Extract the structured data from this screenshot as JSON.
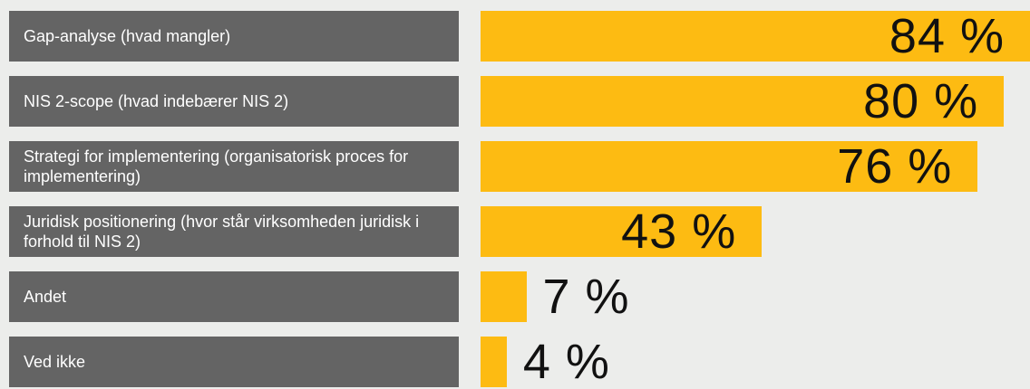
{
  "chart_data": {
    "type": "bar",
    "orientation": "horizontal",
    "categories": [
      "Gap-analyse (hvad mangler)",
      "NIS 2-scope (hvad indebærer NIS 2)",
      "Strategi for implementering (organisatorisk proces for implementering)",
      "Juridisk positionering (hvor står virksomheden juridisk i forhold til NIS 2)",
      "Andet",
      "Ved ikke"
    ],
    "values": [
      84,
      80,
      76,
      43,
      7,
      4
    ],
    "value_labels": [
      "84 %",
      "80 %",
      "76 %",
      "43 %",
      "7 %",
      "4 %"
    ],
    "color": "#fdbb12",
    "label_color": "#646464"
  }
}
